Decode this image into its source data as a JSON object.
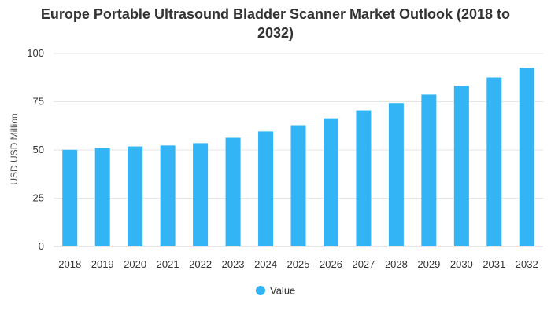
{
  "chart_data": {
    "type": "bar",
    "title": "Europe Portable Ultrasound Bladder Scanner Market Outlook (2018 to 2032)",
    "title_lines": [
      "Europe Portable Ultrasound Bladder Scanner Market Outlook (2018 to",
      "2032)"
    ],
    "xlabel": "",
    "ylabel": "USD USD Million",
    "categories": [
      "2018",
      "2019",
      "2020",
      "2021",
      "2022",
      "2023",
      "2024",
      "2025",
      "2026",
      "2027",
      "2028",
      "2029",
      "2030",
      "2031",
      "2032"
    ],
    "series": [
      {
        "name": "Value",
        "values": [
          50.1,
          51,
          51.8,
          52.3,
          53.5,
          56.3,
          59.6,
          62.8,
          66.4,
          70.5,
          74.3,
          78.7,
          83.3,
          87.6,
          92.5
        ]
      }
    ],
    "ylim": [
      0,
      100
    ],
    "yticks": [
      0,
      25,
      50,
      75,
      100
    ],
    "grid": true,
    "legend_position": "bottom",
    "colors": {
      "bar": "#33b5f5",
      "grid": "#e6e6e6",
      "text": "#333333",
      "legend_marker": "#33b5f5"
    }
  }
}
